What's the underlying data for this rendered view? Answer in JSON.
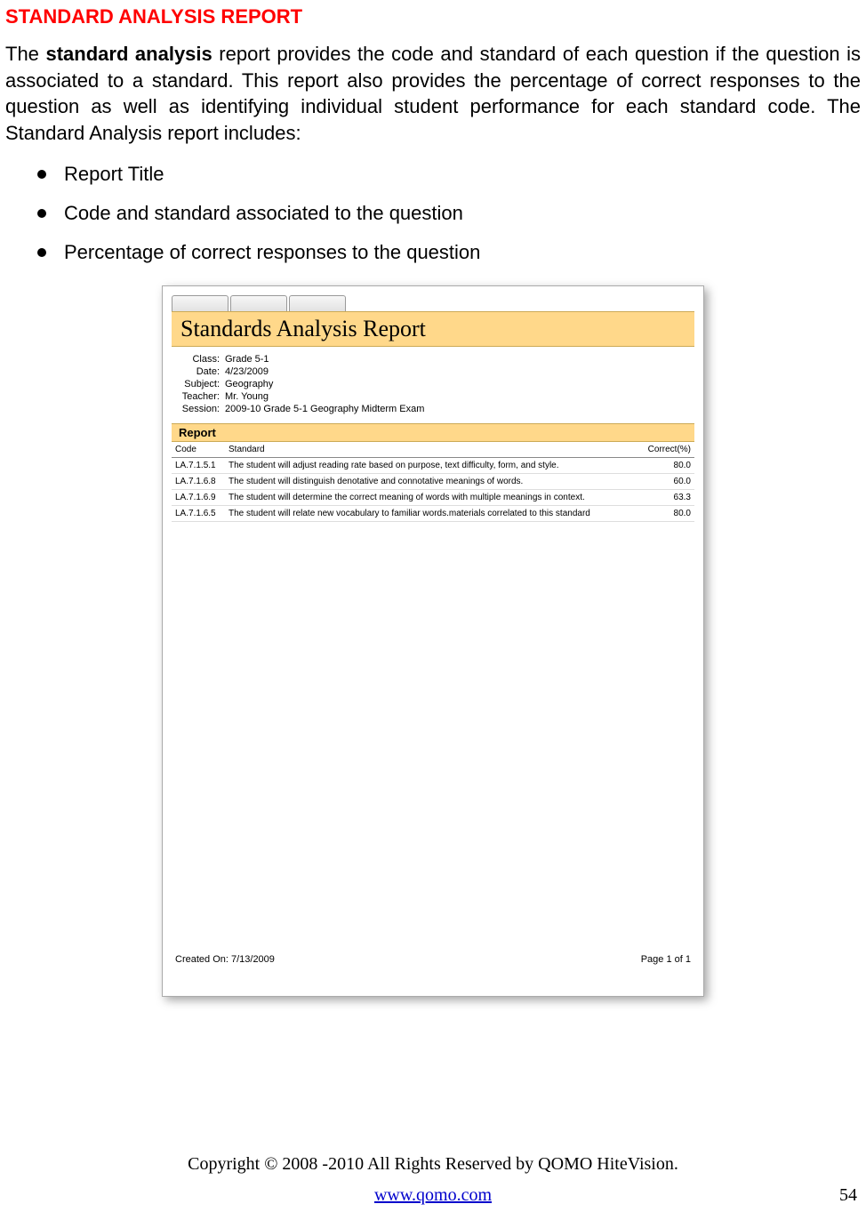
{
  "heading": "STANDARD ANALYSIS REPORT",
  "intro": {
    "prefix": "The ",
    "bold": "standard analysis",
    "rest": " report provides the code and standard of each question if the question is associated to a standard. This report also provides the percentage of correct responses to the question as well as identifying individual student performance for each standard code. The Standard Analysis report includes:"
  },
  "bullets": [
    "Report Title",
    "Code and standard associated to the question",
    "Percentage of correct responses to the question"
  ],
  "report": {
    "title": "Standards  Analysis  Report",
    "meta": {
      "class_label": "Class:",
      "class_value": "Grade 5-1",
      "date_label": "Date:",
      "date_value": "4/23/2009",
      "subject_label": "Subject:",
      "subject_value": "Geography",
      "teacher_label": "Teacher:",
      "teacher_value": "Mr. Young",
      "session_label": "Session:",
      "session_value": "2009-10 Grade 5-1 Geography Midterm Exam"
    },
    "section_label": "Report",
    "columns": {
      "code": "Code",
      "standard": "Standard",
      "correct": "Correct(%)"
    },
    "rows": [
      {
        "code": "LA.7.1.5.1",
        "standard": "The student will adjust reading rate based on purpose, text difficulty, form, and style.",
        "pct": "80.0"
      },
      {
        "code": "LA.7.1.6.8",
        "standard": "The student will distinguish denotative and connotative meanings of words.",
        "pct": "60.0"
      },
      {
        "code": "LA.7.1.6.9",
        "standard": "The student will determine the correct meaning of words with multiple meanings in context.",
        "pct": "63.3"
      },
      {
        "code": "LA.7.1.6.5",
        "standard": "The student will relate new vocabulary to familiar words.materials correlated to this standard",
        "pct": "80.0"
      }
    ],
    "created_label": "Created On: 7/13/2009",
    "page_label": "Page 1 of 1",
    "header_bg": "#ffd88a"
  },
  "footer": {
    "copyright": "Copyright © 2008 -2010 All Rights Reserved by QOMO HiteVision.",
    "url": "www.qomo.com",
    "page_number": "54"
  }
}
